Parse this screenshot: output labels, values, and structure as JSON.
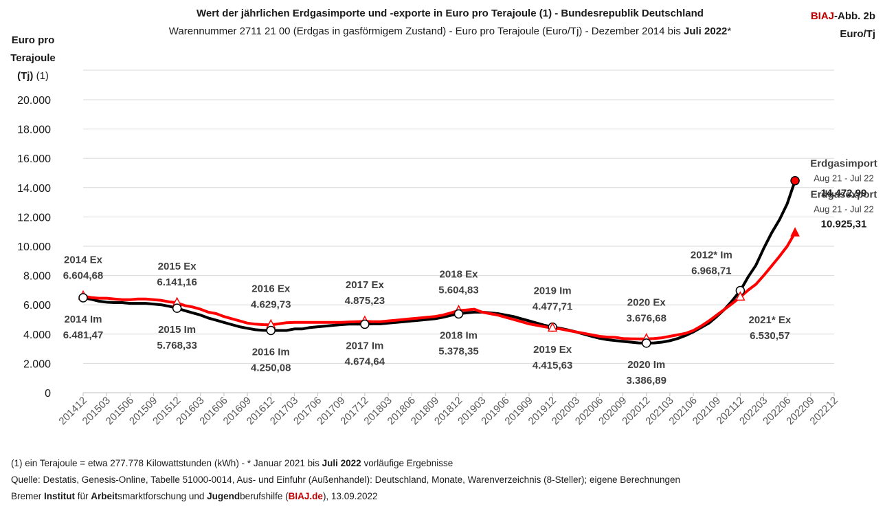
{
  "header": {
    "title": "Wert der jährlichen Erdgasimporte und -exporte in Euro pro Terajoule (1) - Bundesrepublik Deutschland",
    "subtitle_pre": "Warennummer 2711 21 00  (Erdgas in gasförmigem Zustand) - Euro pro Terajoule (Euro/Tj) - Dezember 2014 bis ",
    "subtitle_bold": "Juli 2022",
    "subtitle_post": "*",
    "brand_red": "BIAJ",
    "brand_rest": "-Abb. 2b",
    "brand_unit": "Euro/Tj",
    "ylabel_line1": "Euro pro",
    "ylabel_line2": "Terajoule",
    "ylabel_line3_bold": "(Tj)",
    "ylabel_line3_rest": " (1)"
  },
  "footer": {
    "line1_pre": "(1) ein Terajoule = etwa 277.778 Kilowattstunden (kWh)  - * Januar 2021 bis ",
    "line1_bold": "Juli 2022",
    "line1_post": " vorläufige Ergebnisse",
    "line2": "Quelle: Destatis, Genesis-Online, Tabelle 51000-0014, Aus- und Einfuhr (Außenhandel): Deutschland, Monate, Warenverzeichnis (8-Steller); eigene Berechnungen",
    "line3_a": "Bremer ",
    "line3_b": "Institut",
    "line3_c": " für ",
    "line3_d": "Arbeit",
    "line3_e": "smarktforschung und ",
    "line3_f": "Jugend",
    "line3_g": "berufshilfe (",
    "line3_h": "BIAJ.de",
    "line3_i": "), 13.09.2022"
  },
  "colors": {
    "import_line": "#000000",
    "export_line": "#ff0000",
    "grid": "#d9d9d9",
    "annotation": "#404040"
  },
  "chart_data": {
    "type": "line",
    "x": [
      "201412",
      "201501",
      "201502",
      "201503",
      "201504",
      "201505",
      "201506",
      "201507",
      "201508",
      "201509",
      "201510",
      "201511",
      "201512",
      "201601",
      "201602",
      "201603",
      "201604",
      "201605",
      "201606",
      "201607",
      "201608",
      "201609",
      "201610",
      "201611",
      "201612",
      "201701",
      "201702",
      "201703",
      "201704",
      "201705",
      "201706",
      "201707",
      "201708",
      "201709",
      "201710",
      "201711",
      "201712",
      "201801",
      "201802",
      "201803",
      "201804",
      "201805",
      "201806",
      "201807",
      "201808",
      "201809",
      "201810",
      "201811",
      "201812",
      "201901",
      "201902",
      "201903",
      "201904",
      "201905",
      "201906",
      "201907",
      "201908",
      "201909",
      "201910",
      "201911",
      "201912",
      "202001",
      "202002",
      "202003",
      "202004",
      "202005",
      "202006",
      "202007",
      "202008",
      "202009",
      "202010",
      "202011",
      "202012",
      "202101",
      "202102",
      "202103",
      "202104",
      "202105",
      "202106",
      "202107",
      "202108",
      "202109",
      "202110",
      "202111",
      "202112",
      "202201",
      "202202",
      "202203",
      "202204",
      "202205",
      "202206",
      "202207"
    ],
    "x_tick_labels": [
      "201412",
      "201503",
      "201506",
      "201509",
      "201512",
      "201603",
      "201606",
      "201609",
      "201612",
      "201703",
      "201706",
      "201709",
      "201712",
      "201803",
      "201806",
      "201809",
      "201812",
      "201903",
      "201906",
      "201909",
      "201912",
      "202003",
      "202006",
      "202009",
      "202012",
      "202103",
      "202106",
      "202109",
      "202112",
      "202203",
      "202206",
      "202209",
      "202212"
    ],
    "ylim": [
      0,
      20000
    ],
    "y_ticks": [
      "0",
      "2.000",
      "4.000",
      "6.000",
      "8.000",
      "10.000",
      "12.000",
      "14.000",
      "16.000",
      "18.000",
      "20.000"
    ],
    "grid": true,
    "series": [
      {
        "name": "Erdgasimport",
        "color": "#000000",
        "values": [
          6481,
          6380,
          6250,
          6180,
          6150,
          6150,
          6100,
          6100,
          6100,
          6050,
          6000,
          5900,
          5768,
          5600,
          5450,
          5300,
          5100,
          4950,
          4800,
          4650,
          4500,
          4400,
          4300,
          4260,
          4250,
          4250,
          4250,
          4350,
          4350,
          4450,
          4500,
          4550,
          4600,
          4650,
          4680,
          4680,
          4675,
          4700,
          4700,
          4750,
          4800,
          4850,
          4900,
          4950,
          5000,
          5050,
          5150,
          5280,
          5378,
          5450,
          5500,
          5500,
          5450,
          5400,
          5300,
          5200,
          5050,
          4900,
          4750,
          4600,
          4478,
          4400,
          4280,
          4150,
          4000,
          3850,
          3720,
          3620,
          3560,
          3500,
          3450,
          3400,
          3387,
          3400,
          3450,
          3550,
          3700,
          3900,
          4150,
          4450,
          4750,
          5200,
          5700,
          6300,
          6969,
          7900,
          8700,
          9850,
          10900,
          11800,
          12900,
          14473
        ]
      },
      {
        "name": "Erdgasexport",
        "color": "#ff0000",
        "values": [
          6605,
          6500,
          6450,
          6450,
          6400,
          6350,
          6350,
          6400,
          6400,
          6350,
          6300,
          6200,
          6141,
          5950,
          5850,
          5700,
          5500,
          5400,
          5200,
          5050,
          4900,
          4750,
          4680,
          4650,
          4630,
          4700,
          4780,
          4800,
          4800,
          4800,
          4800,
          4800,
          4800,
          4800,
          4830,
          4850,
          4875,
          4850,
          4850,
          4900,
          4950,
          5000,
          5050,
          5100,
          5150,
          5200,
          5300,
          5450,
          5605,
          5650,
          5700,
          5500,
          5400,
          5300,
          5150,
          5000,
          4850,
          4700,
          4600,
          4500,
          4416,
          4350,
          4250,
          4150,
          4050,
          3950,
          3850,
          3800,
          3780,
          3700,
          3680,
          3670,
          3677,
          3700,
          3750,
          3850,
          3950,
          4050,
          4250,
          4550,
          4900,
          5300,
          5700,
          6100,
          6531,
          7000,
          7400,
          8000,
          8650,
          9300,
          10000,
          10925
        ]
      }
    ],
    "annotations": [
      {
        "series": "Erdgasexport",
        "x": "201412",
        "label": "2014 Ex",
        "value": "6.604,68",
        "place": "above"
      },
      {
        "series": "Erdgasimport",
        "x": "201412",
        "label": "2014 Im",
        "value": "6.481,47",
        "place": "below"
      },
      {
        "series": "Erdgasexport",
        "x": "201512",
        "label": "2015 Ex",
        "value": "6.141,16",
        "place": "above"
      },
      {
        "series": "Erdgasimport",
        "x": "201512",
        "label": "2015 Im",
        "value": "5.768,33",
        "place": "below"
      },
      {
        "series": "Erdgasexport",
        "x": "201612",
        "label": "2016 Ex",
        "value": "4.629,73",
        "place": "above"
      },
      {
        "series": "Erdgasimport",
        "x": "201612",
        "label": "2016 Im",
        "value": "4.250,08",
        "place": "below"
      },
      {
        "series": "Erdgasexport",
        "x": "201712",
        "label": "2017 Ex",
        "value": "4.875,23",
        "place": "above"
      },
      {
        "series": "Erdgasimport",
        "x": "201712",
        "label": "2017 Im",
        "value": "4.674,64",
        "place": "below"
      },
      {
        "series": "Erdgasexport",
        "x": "201812",
        "label": "2018 Ex",
        "value": "5.604,83",
        "place": "above"
      },
      {
        "series": "Erdgasimport",
        "x": "201812",
        "label": "2018 Im",
        "value": "5.378,35",
        "place": "below"
      },
      {
        "series": "Erdgasimport",
        "x": "201912",
        "label": "2019 Im",
        "value": "4.477,71",
        "place": "above"
      },
      {
        "series": "Erdgasexport",
        "x": "201912",
        "label": "2019 Ex",
        "value": "4.415,63",
        "place": "below"
      },
      {
        "series": "Erdgasexport",
        "x": "202012",
        "label": "2020 Ex",
        "value": "3.676,68",
        "place": "above"
      },
      {
        "series": "Erdgasimport",
        "x": "202012",
        "label": "2020 Im",
        "value": "3.386,89",
        "place": "below"
      },
      {
        "series": "Erdgasimport",
        "x": "202112",
        "label": "2012* Im",
        "value": "6.968,71",
        "place": "above-left"
      },
      {
        "series": "Erdgasexport",
        "x": "202112",
        "label": "2021* Ex",
        "value": "6.530,57",
        "place": "below-right"
      }
    ],
    "end_labels": [
      {
        "series": "Erdgasimport",
        "title": "Erdgasimport",
        "period": "Aug 21 - Jul 22",
        "value": "14.472,99"
      },
      {
        "series": "Erdgasexport",
        "title": "Erdgasexport",
        "period": "Aug 21 - Jul 22",
        "value": "10.925,31"
      }
    ]
  }
}
